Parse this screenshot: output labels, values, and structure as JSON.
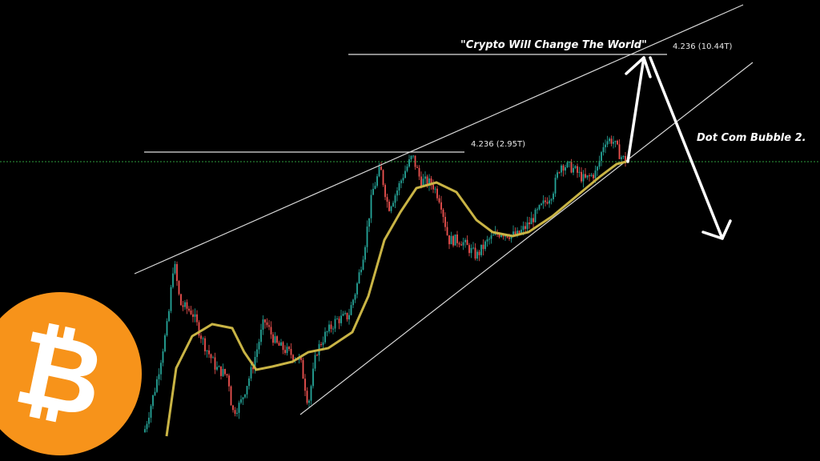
{
  "chart_data": {
    "type": "candlestick",
    "title": "",
    "xlabel": "",
    "ylabel": "",
    "grid": false,
    "colors": {
      "up": "#26a69a",
      "down": "#ef5350",
      "moving_average": "#c9b445",
      "trendlines": "#e0e0e0",
      "support_dotted": "#2e9e3e",
      "background": "#000000",
      "logo": "#f7931a"
    },
    "price_path": [
      [
        0,
        36
      ],
      [
        15,
        96
      ],
      [
        30,
        176
      ],
      [
        37,
        251
      ],
      [
        45,
        196
      ],
      [
        60,
        186
      ],
      [
        75,
        146
      ],
      [
        90,
        116
      ],
      [
        105,
        106
      ],
      [
        110,
        61
      ],
      [
        120,
        71
      ],
      [
        135,
        116
      ],
      [
        150,
        176
      ],
      [
        165,
        146
      ],
      [
        180,
        136
      ],
      [
        195,
        126
      ],
      [
        205,
        71
      ],
      [
        215,
        136
      ],
      [
        225,
        156
      ],
      [
        240,
        176
      ],
      [
        255,
        181
      ],
      [
        265,
        216
      ],
      [
        275,
        266
      ],
      [
        285,
        336
      ],
      [
        295,
        366
      ],
      [
        305,
        316
      ],
      [
        315,
        336
      ],
      [
        325,
        361
      ],
      [
        335,
        381
      ],
      [
        345,
        351
      ],
      [
        360,
        346
      ],
      [
        370,
        326
      ],
      [
        380,
        276
      ],
      [
        395,
        276
      ],
      [
        415,
        256
      ],
      [
        430,
        276
      ],
      [
        445,
        286
      ],
      [
        465,
        281
      ],
      [
        480,
        296
      ],
      [
        495,
        316
      ],
      [
        510,
        336
      ],
      [
        520,
        371
      ],
      [
        535,
        366
      ],
      [
        550,
        351
      ],
      [
        565,
        361
      ],
      [
        575,
        401
      ],
      [
        585,
        401
      ],
      [
        595,
        381
      ],
      [
        602,
        374
      ]
    ],
    "moving_average": [
      [
        28,
        31
      ],
      [
        40,
        116
      ],
      [
        60,
        156
      ],
      [
        85,
        171
      ],
      [
        110,
        166
      ],
      [
        125,
        136
      ],
      [
        140,
        114
      ],
      [
        160,
        118
      ],
      [
        185,
        124
      ],
      [
        205,
        136
      ],
      [
        230,
        141
      ],
      [
        260,
        161
      ],
      [
        280,
        206
      ],
      [
        300,
        276
      ],
      [
        320,
        311
      ],
      [
        340,
        341
      ],
      [
        365,
        348
      ],
      [
        390,
        336
      ],
      [
        415,
        301
      ],
      [
        435,
        286
      ],
      [
        460,
        281
      ],
      [
        480,
        286
      ],
      [
        510,
        306
      ],
      [
        540,
        331
      ],
      [
        570,
        356
      ],
      [
        590,
        371
      ],
      [
        602,
        374
      ]
    ],
    "annotations": {
      "target_quote": "\"Crypto Will Change The World\"",
      "fib_high": "4.236 (10.44T)",
      "fib_low": "4.236 (2.95T)",
      "scenario": "Dot Com Bubble 2."
    },
    "logo": "₿"
  }
}
